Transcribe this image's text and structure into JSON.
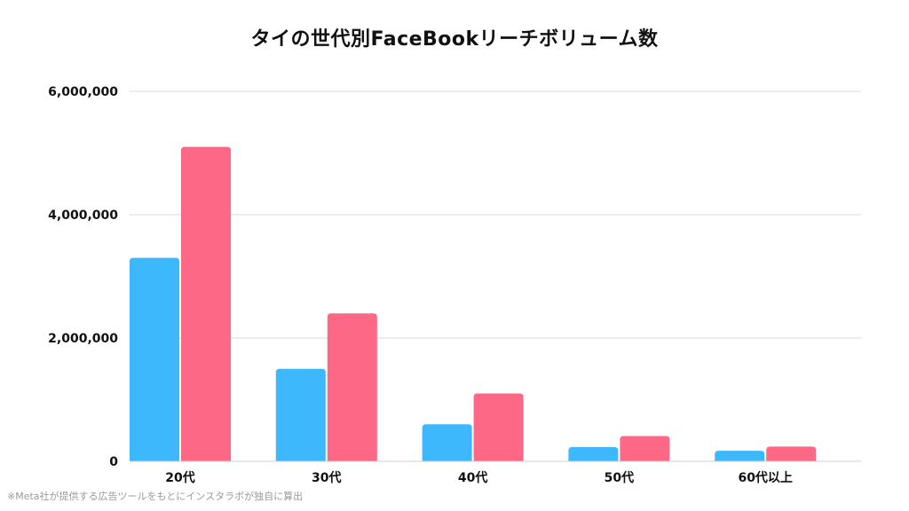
{
  "chart_data": {
    "type": "bar",
    "title": "タイの世代別FaceBookリーチボリューム数",
    "categories": [
      "20代",
      "30代",
      "40代",
      "50代",
      "60代以上"
    ],
    "series": [
      {
        "values": [
          3300000,
          1500000,
          600000,
          230000,
          170000
        ],
        "color": "#3db8fc"
      },
      {
        "values": [
          5100000,
          2400000,
          1100000,
          410000,
          240000
        ],
        "color": "#fd6887"
      }
    ],
    "ylim": [
      0,
      6000000
    ],
    "yticks": [
      0,
      2000000,
      4000000,
      6000000
    ],
    "ytick_labels": [
      "0",
      "2,000,000",
      "4,000,000",
      "6,000,000"
    ],
    "grid": true,
    "xlabel": "",
    "ylabel": ""
  },
  "footnote": "※Meta社が提供する広告ツールをもとにインスタラボが独自に算出"
}
